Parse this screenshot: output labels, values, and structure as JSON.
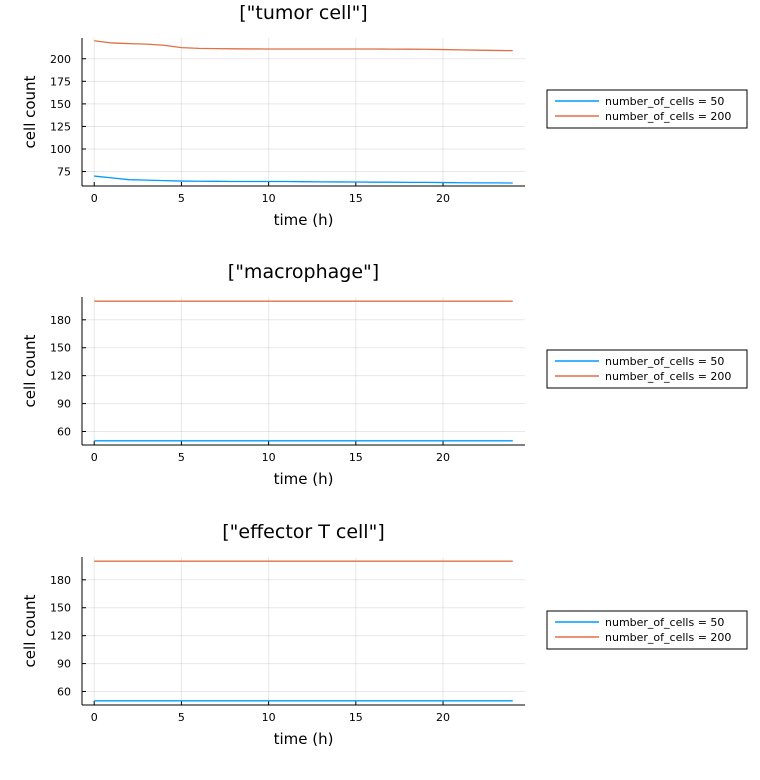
{
  "chart_data": [
    {
      "type": "line",
      "title": "[\"tumor cell\"]",
      "xlabel": "time (h)",
      "ylabel": "cell count",
      "xlim": [
        -0.7,
        24.7
      ],
      "ylim": [
        59,
        223
      ],
      "xticks": [
        0,
        5,
        10,
        15,
        20
      ],
      "yticks": [
        75,
        100,
        125,
        150,
        175,
        200
      ],
      "grid": true,
      "legend_position": "outer-right",
      "series": [
        {
          "name": "number_of_cells = 50",
          "color": "#009af9",
          "x": [
            0,
            1,
            2,
            3,
            4,
            5,
            6,
            7,
            8,
            9,
            10,
            11,
            12,
            13,
            14,
            15,
            16,
            17,
            18,
            19,
            20,
            21,
            22,
            23,
            24
          ],
          "y": [
            70,
            68,
            66,
            65.5,
            65,
            64.5,
            64.3,
            64.2,
            64,
            64,
            64,
            64,
            63.8,
            63.6,
            63.5,
            63.4,
            63.2,
            63.2,
            63,
            63,
            62.8,
            62.6,
            62.5,
            62.5,
            62.3
          ]
        },
        {
          "name": "number_of_cells = 200",
          "color": "#e26f46",
          "x": [
            0,
            1,
            2,
            3,
            4,
            5,
            6,
            7,
            8,
            9,
            10,
            11,
            12,
            13,
            14,
            15,
            16,
            17,
            18,
            19,
            20,
            21,
            22,
            23,
            24
          ],
          "y": [
            220,
            217.5,
            216.8,
            216.2,
            215,
            212.3,
            211.5,
            211.2,
            211,
            210.9,
            210.8,
            210.8,
            210.8,
            210.8,
            210.8,
            210.8,
            210.8,
            210.7,
            210.6,
            210.5,
            210.2,
            209.8,
            209.5,
            209.2,
            209
          ]
        }
      ]
    },
    {
      "type": "line",
      "title": "[\"macrophage\"]",
      "xlabel": "time (h)",
      "ylabel": "cell count",
      "xlim": [
        -0.7,
        24.7
      ],
      "ylim": [
        45.5,
        204.5
      ],
      "xticks": [
        0,
        5,
        10,
        15,
        20
      ],
      "yticks": [
        60,
        90,
        120,
        150,
        180
      ],
      "grid": true,
      "legend_position": "outer-right",
      "series": [
        {
          "name": "number_of_cells = 50",
          "color": "#009af9",
          "x": [
            0,
            24
          ],
          "y": [
            50,
            50
          ]
        },
        {
          "name": "number_of_cells = 200",
          "color": "#e26f46",
          "x": [
            0,
            24
          ],
          "y": [
            200,
            200
          ]
        }
      ]
    },
    {
      "type": "line",
      "title": "[\"effector T cell\"]",
      "xlabel": "time (h)",
      "ylabel": "cell count",
      "xlim": [
        -0.7,
        24.7
      ],
      "ylim": [
        45.5,
        204.5
      ],
      "xticks": [
        0,
        5,
        10,
        15,
        20
      ],
      "yticks": [
        60,
        90,
        120,
        150,
        180
      ],
      "grid": true,
      "legend_position": "outer-right",
      "series": [
        {
          "name": "number_of_cells = 50",
          "color": "#009af9",
          "x": [
            0,
            24
          ],
          "y": [
            50,
            50
          ]
        },
        {
          "name": "number_of_cells = 200",
          "color": "#e26f46",
          "x": [
            0,
            24
          ],
          "y": [
            200,
            200
          ]
        }
      ]
    }
  ]
}
